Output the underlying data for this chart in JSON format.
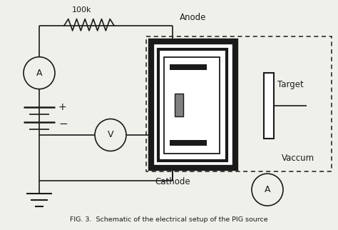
{
  "bg_color": "#f0f0eb",
  "line_color": "#1a1a1a",
  "title_text": "FIG. 3.  Schematic of the electrical setup of the PIG source",
  "labels": {
    "resistor": "100k",
    "anode": "Anode",
    "cathode": "Cathode",
    "target": "Target",
    "vaccum": "Vaccum"
  }
}
